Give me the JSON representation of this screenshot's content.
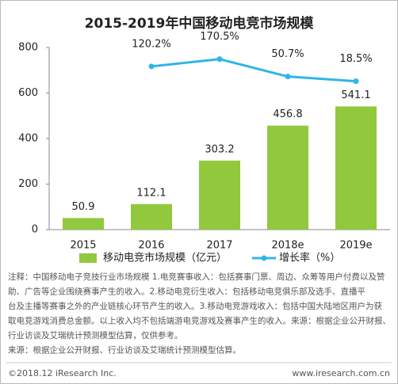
{
  "chart_data": {
    "type": "bar",
    "title": "2015-2019年中国移动电竞市场规模",
    "categories": [
      "2015",
      "2016",
      "2017",
      "2018e",
      "2019e"
    ],
    "series": [
      {
        "name": "移动电竞市场规模（亿元）",
        "type": "bar",
        "color": "#92c83e",
        "values": [
          50.9,
          112.1,
          303.2,
          456.8,
          541.1
        ]
      },
      {
        "name": "增长率（%）",
        "type": "line",
        "axis": "y2",
        "color": "#2fb6e6",
        "values": [
          null,
          120.2,
          170.5,
          50.7,
          18.5
        ],
        "value_labels": [
          null,
          "120.2%",
          "170.5%",
          "50.7%",
          "18.5%"
        ]
      }
    ],
    "ylim": [
      0,
      800
    ],
    "yticks": [
      0,
      200,
      400,
      600,
      800
    ],
    "y2lim": [
      -1000,
      250
    ]
  },
  "notes": [
    "注释：中国移动电子竞技行业市场规模 1.电竞赛事收入：包括赛事门票、周边、众筹等用户付费以及赞",
    "助、广告等企业围绕赛事产生的收入。2.移动电竞衍生收入：包括移动电竞俱乐部及选手、直播平",
    "台及主播等赛事之外的产业链核心环节产生的收入。3.移动电竞游戏收入：包括中国大陆地区用户为获",
    "取电竞游戏消费总金额。以上收入均不包括端游电竞游戏及赛事产生的收入。来源：根据企业公开财报、",
    "行业访谈及艾瑞统计预测模型估算，仅供参考。",
    "来源：根据企业公开财报、行业访谈及艾瑞统计预测模型估算。"
  ],
  "footer": {
    "copyright": "©2018.12 iResearch Inc.",
    "url": "www.iresearch.com.cn"
  }
}
